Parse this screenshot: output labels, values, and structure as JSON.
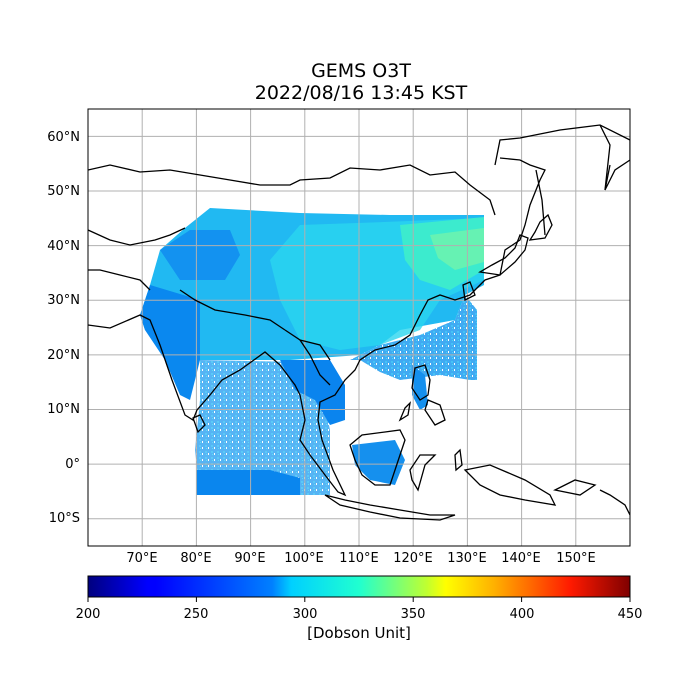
{
  "title": "GEMS O3T",
  "subtitle": "2022/08/16 13:45 KST",
  "map": {
    "projection": "PlateCarree",
    "lon_range": [
      60,
      160
    ],
    "lat_range": [
      -15,
      65
    ],
    "grid": true,
    "lat_ticks": [
      {
        "value": 60,
        "label": "60°N"
      },
      {
        "value": 50,
        "label": "50°N"
      },
      {
        "value": 40,
        "label": "40°N"
      },
      {
        "value": 30,
        "label": "30°N"
      },
      {
        "value": 20,
        "label": "20°N"
      },
      {
        "value": 10,
        "label": "10°N"
      },
      {
        "value": 0,
        "label": "0°"
      },
      {
        "value": -10,
        "label": "10°S"
      }
    ],
    "lon_ticks": [
      {
        "value": 70,
        "label": "70°E"
      },
      {
        "value": 80,
        "label": "80°E"
      },
      {
        "value": 90,
        "label": "90°E"
      },
      {
        "value": 100,
        "label": "100°E"
      },
      {
        "value": 110,
        "label": "110°E"
      },
      {
        "value": 120,
        "label": "120°E"
      },
      {
        "value": 130,
        "label": "130°E"
      },
      {
        "value": 140,
        "label": "140°E"
      },
      {
        "value": 150,
        "label": "150°E"
      }
    ]
  },
  "colorbar": {
    "colormap": "jet",
    "range": [
      200,
      450
    ],
    "ticks": [
      "200",
      "250",
      "300",
      "350",
      "400",
      "450"
    ],
    "label": "[Dobson Unit]"
  }
}
